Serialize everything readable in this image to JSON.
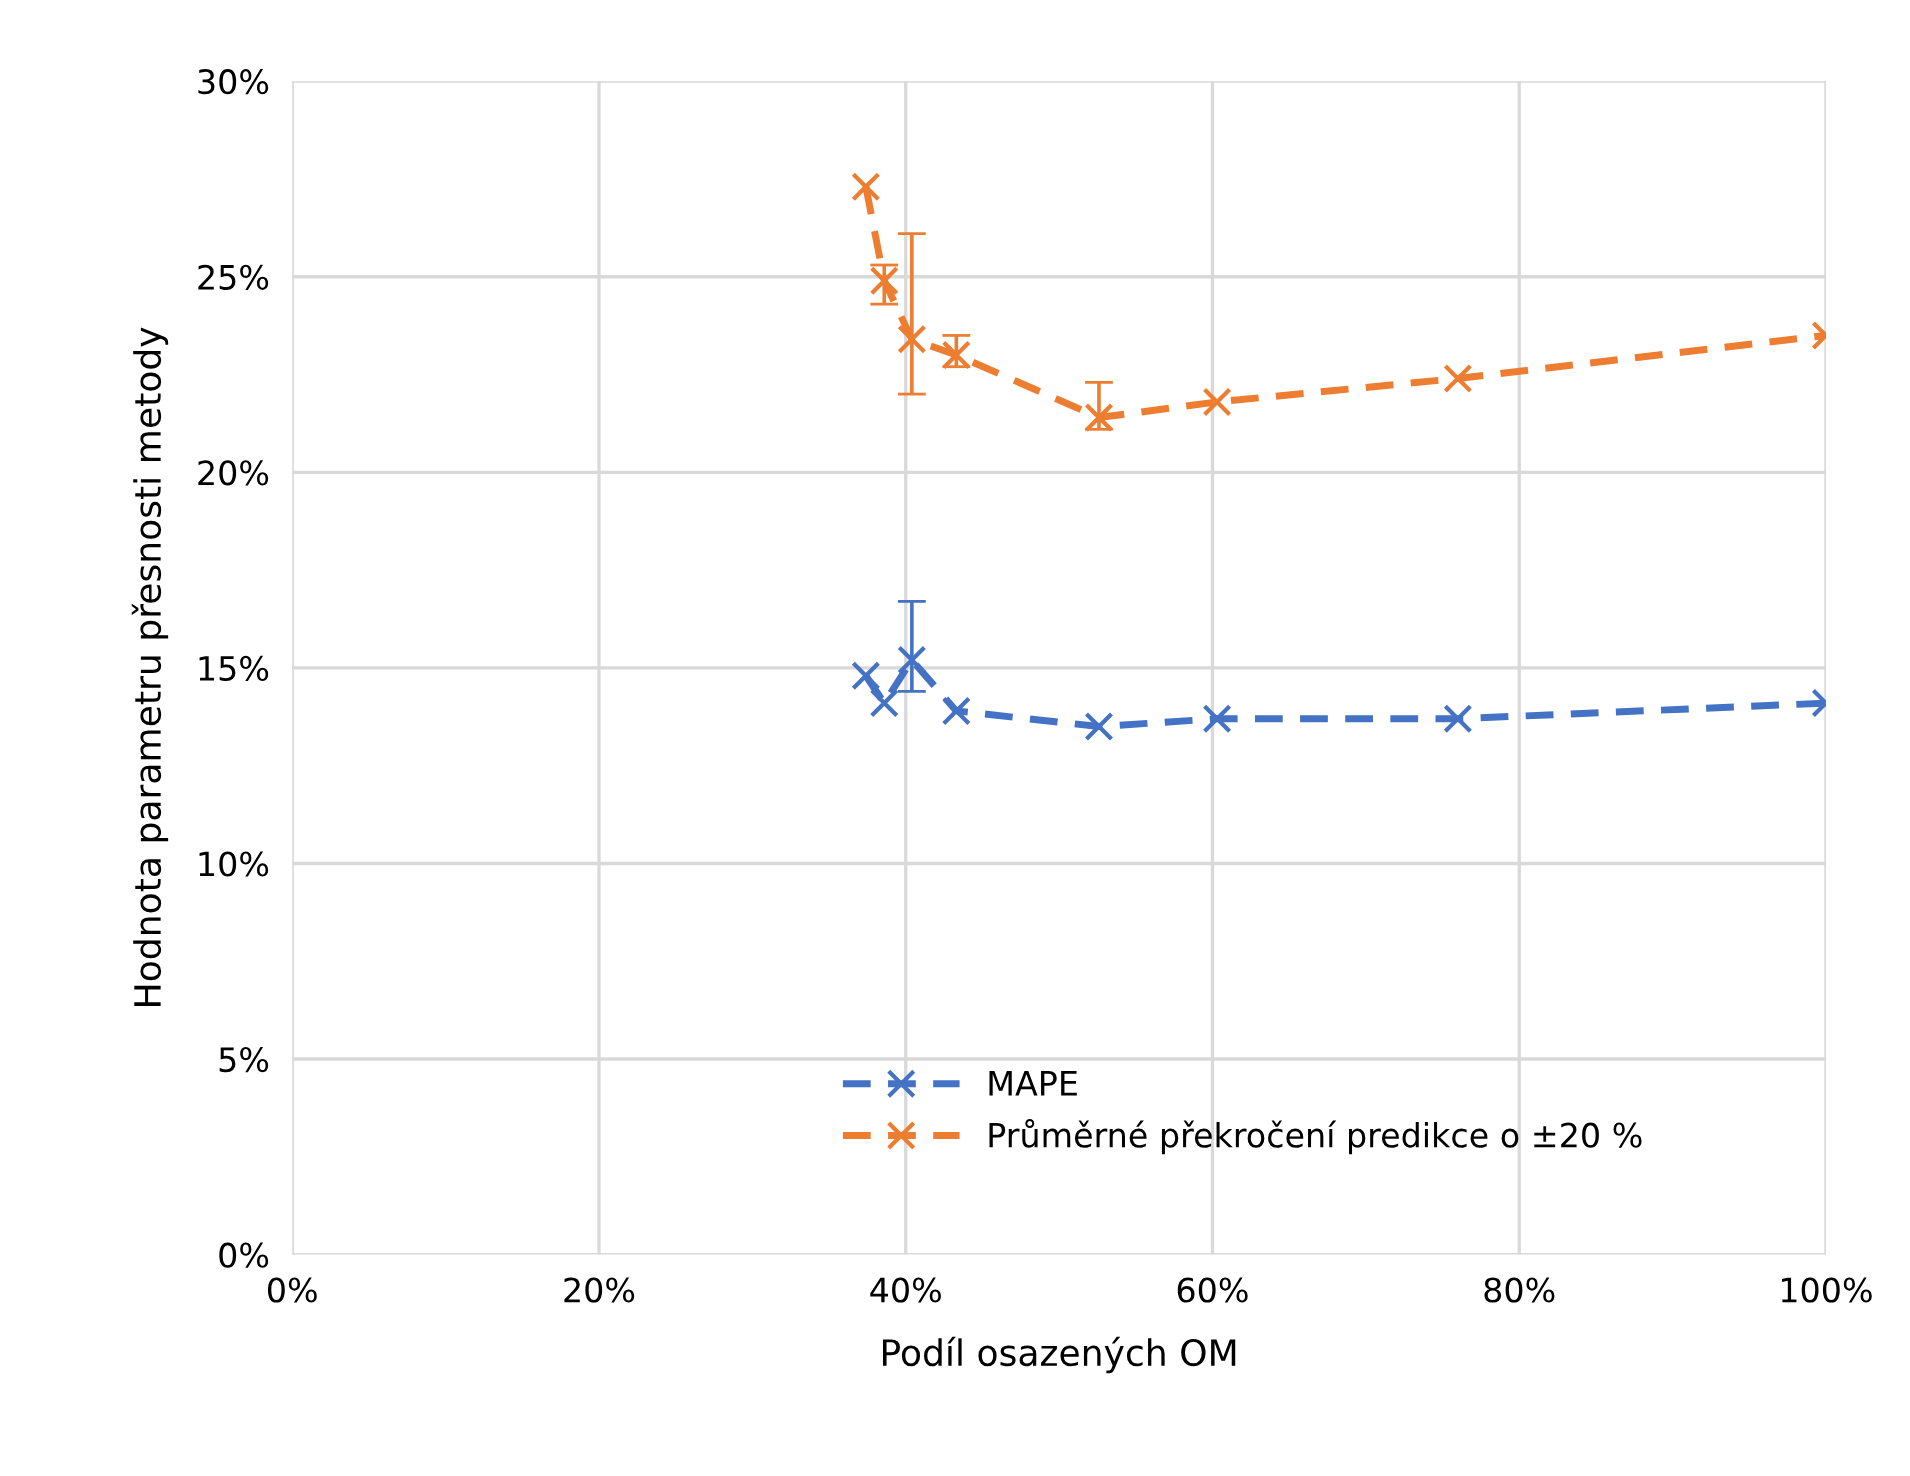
{
  "chart_data": {
    "type": "line",
    "xlabel": "Podíl osazených OM",
    "ylabel": "Hodnota parametru přesnosti metody",
    "x": [
      37.4,
      38.6,
      40.4,
      43.3,
      52.6,
      60.3,
      76.0,
      100
    ],
    "series": [
      {
        "name": "MAPE",
        "color": "#4472c4",
        "values": [
          14.8,
          14.1,
          15.2,
          13.9,
          13.5,
          13.7,
          13.7,
          14.1
        ],
        "errors": [
          null,
          null,
          [
            14.4,
            16.7
          ],
          null,
          null,
          null,
          null,
          null
        ]
      },
      {
        "name": "Průměrné překročení predikce o ±20 %",
        "color": "#ed7d31",
        "values": [
          27.3,
          24.9,
          23.4,
          23.0,
          21.4,
          21.8,
          22.4,
          23.5
        ],
        "errors": [
          null,
          [
            24.3,
            25.3
          ],
          [
            22.0,
            26.1
          ],
          [
            22.7,
            23.5
          ],
          [
            21.1,
            22.3
          ],
          null,
          null,
          null
        ]
      }
    ],
    "xlim": [
      0,
      100
    ],
    "xticks": [
      {
        "value": 0,
        "label": "0%"
      },
      {
        "value": 20,
        "label": "20%"
      },
      {
        "value": 40,
        "label": "40%"
      },
      {
        "value": 60,
        "label": "60%"
      },
      {
        "value": 80,
        "label": "80%"
      },
      {
        "value": 100,
        "label": "100%"
      }
    ],
    "ylim": [
      0,
      30
    ],
    "yticks": [
      {
        "value": 0,
        "label": "0%"
      },
      {
        "value": 5,
        "label": "5%"
      },
      {
        "value": 10,
        "label": "10%"
      },
      {
        "value": 15,
        "label": "15%"
      },
      {
        "value": 20,
        "label": "20%"
      },
      {
        "value": 25,
        "label": "25%"
      },
      {
        "value": 30,
        "label": "30%"
      }
    ],
    "grid": true,
    "legend": "bottom",
    "marker": "cross",
    "line_style": "dashed"
  }
}
